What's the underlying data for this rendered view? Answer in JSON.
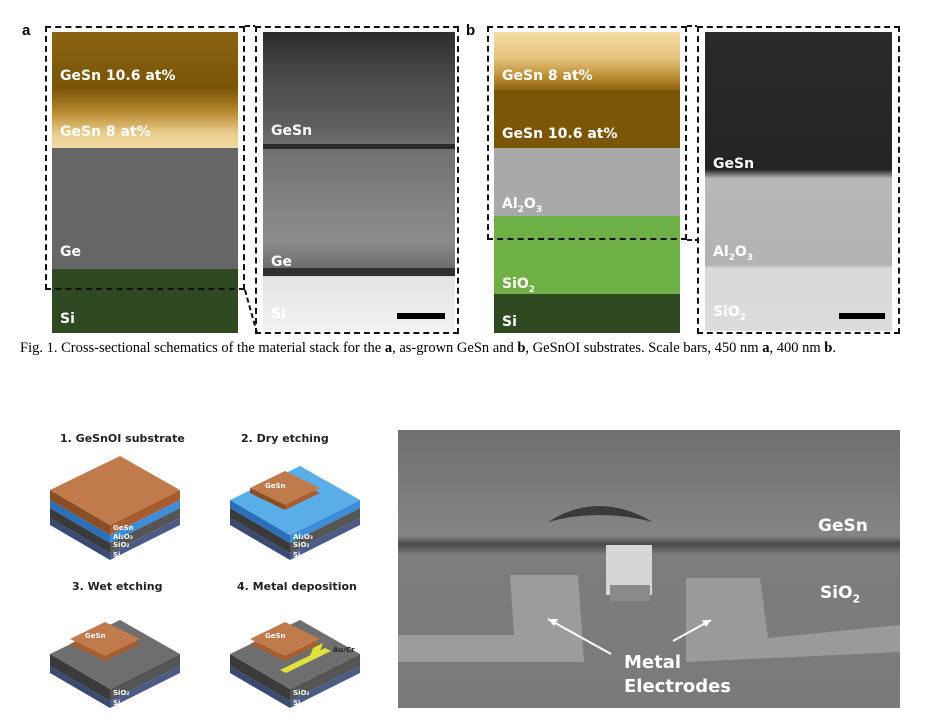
{
  "figure1": {
    "panel_a": {
      "letter": "a",
      "schematic_layers": [
        {
          "label": "GeSn 10.6 at%"
        },
        {
          "label": "GeSn 8 at%"
        },
        {
          "label": "Ge"
        },
        {
          "label": "Si"
        }
      ],
      "tem_labels": {
        "gesn": "GeSn",
        "ge": "Ge",
        "si": "Si"
      }
    },
    "panel_b": {
      "letter": "b",
      "schematic_layers": [
        {
          "label": "GeSn 8 at%"
        },
        {
          "label": "GeSn 10.6 at%"
        },
        {
          "label": "Al",
          "sub": "2",
          "label2": "O",
          "sub2": "3"
        },
        {
          "label": "SiO",
          "sub": "2"
        },
        {
          "label": "Si"
        }
      ],
      "tem_labels": {
        "gesn": "GeSn",
        "al2o3": "Al",
        "al2o3_sub": "2",
        "al2o3_o": "O",
        "al2o3_sub2": "3",
        "sio2": "SiO",
        "sio2_sub": "2"
      }
    },
    "caption": {
      "prefix": "Fig. 1. Cross-sectional schematics of the material stack for the ",
      "a": "a",
      "mid": ", as-grown GeSn and ",
      "b": "b",
      "mid2": ", GeSnOI substrates. Scale bars, 450 nm ",
      "a2": "a",
      "mid3": ", 400 nm ",
      "b2": "b",
      "end": "."
    }
  },
  "figure2": {
    "steps": [
      {
        "title": "1. GeSnOI substrate",
        "labels": [
          "GeSn",
          "Al2O3",
          "SiO2",
          "Si"
        ]
      },
      {
        "title": "2. Dry etching",
        "labels": [
          "GeSn",
          "Al2O3",
          "SiO2",
          "Si"
        ]
      },
      {
        "title": "3. Wet etching",
        "labels": [
          "GeSn",
          "SiO2",
          "Si"
        ]
      },
      {
        "title": "4. Metal deposition",
        "labels": [
          "GeSn",
          "Au/Cr",
          "SiO2",
          "Si"
        ]
      }
    ],
    "sem": {
      "gesn": "GeSn",
      "sio2": "SiO",
      "sio2_sub": "2",
      "metal_line1": "Metal",
      "metal_line2": "Electrodes"
    }
  }
}
